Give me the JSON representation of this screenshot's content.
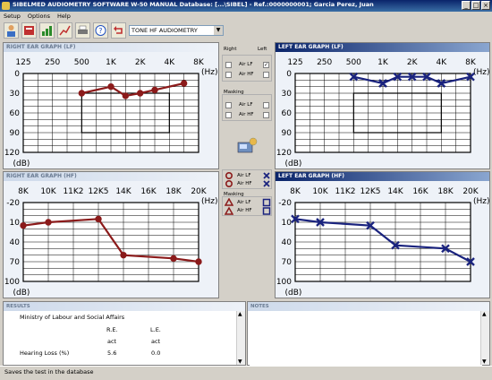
{
  "window": {
    "title": "SIBELMED AUDIOMETRY SOFTWARE W-50 MANUAL    Database: [...\\SIBEL] - Ref.:0000000001; Garcia Perez, Juan"
  },
  "menu": [
    "Setup",
    "Options",
    "Help"
  ],
  "toolbar": {
    "icons": [
      "patient-icon",
      "database-icon",
      "audiogram-icon",
      "print-icon",
      "export-icon",
      "help-icon",
      "back-arrow-icon"
    ],
    "test_type": "TONE HF AUDIOMETRY"
  },
  "graphs": {
    "right_lf": {
      "title": "RIGHT EAR GRAPH (LF)",
      "active": false,
      "x_labels": [
        "125",
        "250",
        "500",
        "1K",
        "2K",
        "4K",
        "8K"
      ],
      "y_labels": [
        "0",
        "30",
        "60",
        "90",
        "120"
      ],
      "x_unit": "(Hz)",
      "y_unit": "(dB)",
      "color": "#8b1a1a",
      "marker": "circle",
      "points": [
        {
          "x": "500",
          "y": 30
        },
        {
          "x": "1K",
          "y": 20
        },
        {
          "x": "1.5K",
          "y": 34
        },
        {
          "x": "2K",
          "y": 30
        },
        {
          "x": "3K",
          "y": 25
        },
        {
          "x": "4K / 6K",
          "y": 15
        }
      ]
    },
    "left_lf": {
      "title": "LEFT EAR GRAPH (LF)",
      "active": true,
      "x_labels": [
        "125",
        "250",
        "500",
        "1K",
        "2K",
        "4K",
        "8K"
      ],
      "y_labels": [
        "0",
        "30",
        "60",
        "90",
        "120"
      ],
      "x_unit": "(Hz)",
      "y_unit": "(dB)",
      "color": "#1a237e",
      "marker": "cross",
      "points": [
        {
          "x": "500",
          "y": 5
        },
        {
          "x": "1K",
          "y": 15
        },
        {
          "x": "1.5K",
          "y": 5
        },
        {
          "x": "2K",
          "y": 5
        },
        {
          "x": "3K",
          "y": 5
        },
        {
          "x": "4K",
          "y": 15
        },
        {
          "x": "8K",
          "y": 5
        }
      ]
    },
    "right_hf": {
      "title": "RIGHT EAR GRAPH (HF)",
      "active": false,
      "x_labels": [
        "8K",
        "10K",
        "11K2",
        "12K5",
        "14K",
        "16K",
        "18K",
        "20K"
      ],
      "y_labels": [
        "-20",
        "10",
        "40",
        "70",
        "100"
      ],
      "x_unit": "(Hz)",
      "y_unit": "(dB)",
      "color": "#8b1a1a",
      "marker": "circle",
      "points": [
        {
          "x": "8K",
          "y": 15
        },
        {
          "x": "10K",
          "y": 10
        },
        {
          "x": "12K5",
          "y": 5
        },
        {
          "x": "14K",
          "y": 60
        },
        {
          "x": "18K",
          "y": 65
        },
        {
          "x": "20K",
          "y": 70
        }
      ]
    },
    "left_hf": {
      "title": "LEFT EAR GRAPH (HF)",
      "active": true,
      "x_labels": [
        "8K",
        "10K",
        "11K2",
        "12K5",
        "14K",
        "16K",
        "18K",
        "20K"
      ],
      "y_labels": [
        "-20",
        "10",
        "40",
        "70",
        "100"
      ],
      "x_unit": "(Hz)",
      "y_unit": "(dB)",
      "color": "#1a237e",
      "marker": "cross",
      "points": [
        {
          "x": "8K",
          "y": 5
        },
        {
          "x": "10K",
          "y": 10
        },
        {
          "x": "12K5",
          "y": 15
        },
        {
          "x": "14K",
          "y": 45
        },
        {
          "x": "18K",
          "y": 50
        },
        {
          "x": "20K",
          "y": 70
        }
      ]
    }
  },
  "center": {
    "right_label": "Right",
    "left_label": "Left",
    "lf_checks": [
      {
        "label": "Air LF",
        "right": false,
        "left": true
      },
      {
        "label": "Air HF",
        "right": false,
        "left": false
      }
    ],
    "masking_title": "Masking",
    "masking_checks": [
      {
        "label": "Air LF",
        "right": false,
        "left": false
      },
      {
        "label": "Air HF",
        "right": false,
        "left": false
      }
    ],
    "legend1": [
      {
        "label": "Air LF"
      },
      {
        "label": "Air HF"
      }
    ],
    "legend2_title": "Masking",
    "legend2": [
      {
        "label": "Air LF"
      },
      {
        "label": "Air HF"
      }
    ]
  },
  "results": {
    "title": "RESULTS",
    "institution": "Ministry of Labour and Social Affairs",
    "col_re": "R.E.",
    "col_le": "L.E.",
    "sub_re": "act",
    "sub_le": "act",
    "rows": [
      {
        "label": "Hearing Loss (%)",
        "re": "5.6",
        "le": "0.0"
      }
    ]
  },
  "notes": {
    "title": "NOTES"
  },
  "status": {
    "text": "Saves the test in the database"
  }
}
